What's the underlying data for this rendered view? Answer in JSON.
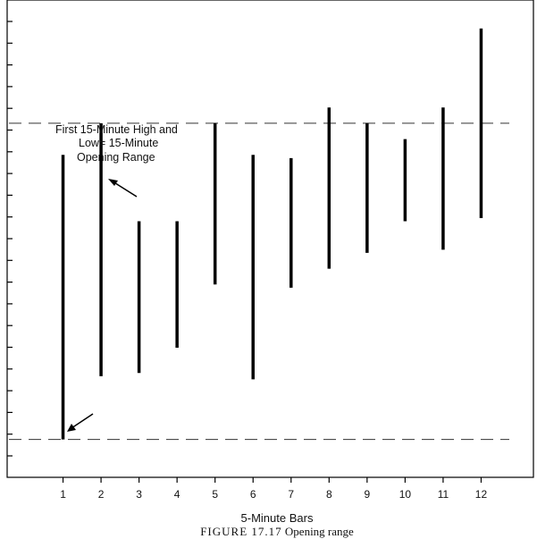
{
  "chart_data": {
    "type": "bar",
    "subtype": "high-low range bars",
    "x": [
      1,
      2,
      3,
      4,
      5,
      6,
      7,
      8,
      9,
      10,
      11,
      12
    ],
    "x_tick_labels": [
      "1",
      "2",
      "3",
      "4",
      "5",
      "6",
      "7",
      "8",
      "9",
      "10",
      "11",
      "12"
    ],
    "series": [
      {
        "high": [
          10.1,
          11.1,
          8.0,
          8.0,
          11.1,
          10.1,
          10.0,
          11.6,
          11.1,
          10.6,
          11.6,
          14.1
        ],
        "low": [
          1.1,
          3.1,
          3.2,
          4.0,
          6.0,
          3.0,
          5.9,
          6.5,
          7.0,
          8.0,
          7.1,
          8.1
        ]
      }
    ],
    "reference_lines": [
      {
        "value": 11.1,
        "style": "dashed"
      },
      {
        "value": 1.1,
        "style": "dashed"
      }
    ],
    "annotation_text": [
      "First 15-Minute High and",
      "Low= 15-Minute",
      "Opening Range"
    ],
    "xlabel": "5-Minute Bars",
    "ylabel": "",
    "xlim": [
      0,
      13
    ],
    "ylim": [
      -0.1,
      15
    ],
    "y_tick_count": 21,
    "y_tick_labels": false,
    "grid": false,
    "legend": "none",
    "colors": {
      "bars": "#000000",
      "axes": "#000000",
      "reference": "#333333"
    },
    "caption": {
      "figure": "FIGURE 17.17",
      "text": "Opening range"
    }
  }
}
